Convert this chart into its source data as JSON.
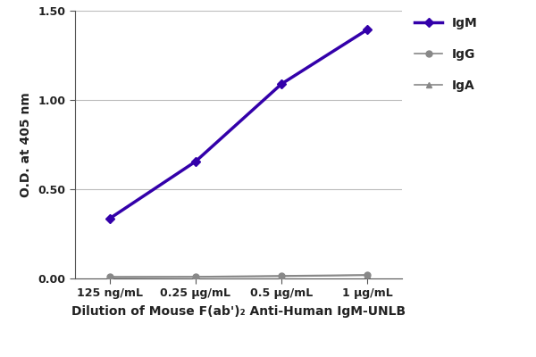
{
  "x_labels": [
    "125 ng/mL",
    "0.25 μg/mL",
    "0.5 μg/mL",
    "1 μg/mL"
  ],
  "x_positions": [
    0,
    1,
    2,
    3
  ],
  "IgM_values": [
    0.335,
    0.655,
    1.09,
    1.395
  ],
  "IgG_values": [
    0.01,
    0.01,
    0.015,
    0.02
  ],
  "IgA_values": [
    0.005,
    0.008,
    0.012,
    0.018
  ],
  "IgM_color": "#3300aa",
  "IgG_color": "#888888",
  "IgA_color": "#888888",
  "IgM_marker": "D",
  "IgG_marker": "o",
  "IgA_marker": "^",
  "ylabel": "O.D. at 405 nm",
  "xlabel": "Dilution of Mouse F(ab')₂ Anti-Human IgM-UNLB",
  "ylim": [
    0.0,
    1.5
  ],
  "yticks": [
    0.0,
    0.5,
    1.0,
    1.5
  ],
  "ytick_labels": [
    "0.00",
    "0.50",
    "1.00",
    "1.50"
  ],
  "legend_labels": [
    "IgM",
    "IgG",
    "IgA"
  ],
  "background_color": "#ffffff",
  "line_width": 2.5,
  "marker_size": 5,
  "tick_fontsize": 9,
  "label_fontsize": 10
}
